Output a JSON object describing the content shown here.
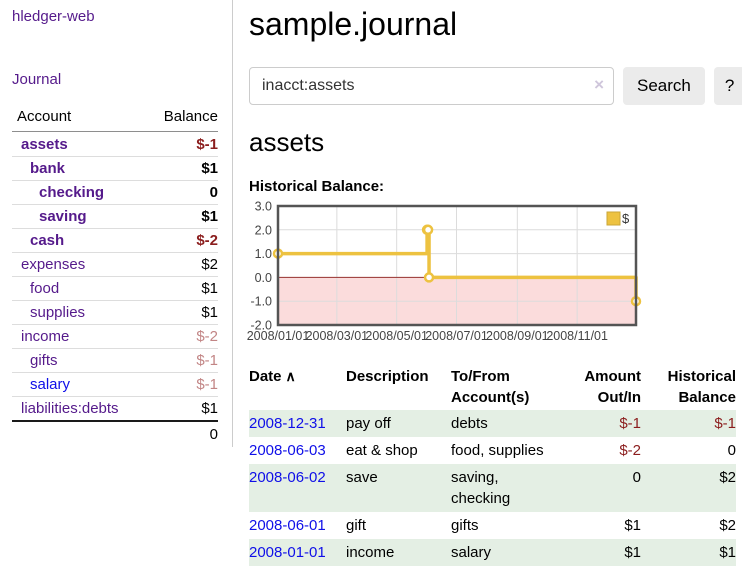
{
  "app": {
    "brand": "hledger-web",
    "nav": {
      "journal": "Journal"
    }
  },
  "sidebar": {
    "headers": {
      "account": "Account",
      "balance": "Balance"
    },
    "accounts": [
      {
        "name": "assets",
        "indent": 0,
        "balance": "$-1",
        "bold": true,
        "balance_style": "negative"
      },
      {
        "name": "bank",
        "indent": 1,
        "balance": "$1",
        "bold": true,
        "balance_style": "normal"
      },
      {
        "name": "checking",
        "indent": 2,
        "balance": "0",
        "bold": true,
        "balance_style": "normal"
      },
      {
        "name": "saving",
        "indent": 2,
        "balance": "$1",
        "bold": true,
        "balance_style": "normal"
      },
      {
        "name": "cash",
        "indent": 1,
        "balance": "$-2",
        "bold": true,
        "balance_style": "negative"
      },
      {
        "name": "expenses",
        "indent": 0,
        "balance": "$2",
        "bold": false,
        "balance_style": "normal"
      },
      {
        "name": "food",
        "indent": 1,
        "balance": "$1",
        "bold": false,
        "balance_style": "normal"
      },
      {
        "name": "supplies",
        "indent": 1,
        "balance": "$1",
        "bold": false,
        "balance_style": "normal"
      },
      {
        "name": "income",
        "indent": 0,
        "balance": "$-2",
        "bold": false,
        "balance_style": "dim-negative"
      },
      {
        "name": "gifts",
        "indent": 1,
        "balance": "$-1",
        "bold": false,
        "balance_style": "dim-negative"
      },
      {
        "name": "salary",
        "indent": 1,
        "balance": "$-1",
        "bold": false,
        "balance_style": "dim-negative",
        "link_style": "unvisited"
      },
      {
        "name": "liabilities:debts",
        "indent": 0,
        "balance": "$1",
        "bold": false,
        "balance_style": "normal"
      }
    ],
    "total": "0"
  },
  "header": {
    "title": "sample.journal"
  },
  "search": {
    "value": "inacct:assets",
    "clear_icon": "×",
    "button_label": "Search",
    "help_label": "?"
  },
  "account_page": {
    "title": "assets",
    "chart_heading": "Historical Balance:"
  },
  "chart_data": {
    "type": "line",
    "line_style": "step",
    "title": "Historical Balance",
    "series": [
      {
        "name": "$",
        "color": "#edc240",
        "points": [
          [
            "2008-01-01",
            1
          ],
          [
            "2008-06-01",
            2
          ],
          [
            "2008-06-02",
            2
          ],
          [
            "2008-06-03",
            0
          ],
          [
            "2008-12-31",
            -1
          ]
        ]
      }
    ],
    "x_range": [
      "2008-01-01",
      "2008-12-31"
    ],
    "ylim": [
      -2,
      3
    ],
    "y_tick_labels": [
      "3.0",
      "2.0",
      "1.0",
      "0.0",
      "-1.0",
      "-2.0"
    ],
    "x_tick_labels": [
      "2008/01/01",
      "2008/03/01",
      "2008/05/01",
      "2008/07/01",
      "2008/09/01",
      "2008/11/01"
    ],
    "grid": true,
    "legend": {
      "label": "$",
      "position": "top-right"
    },
    "negative_region_color": "#fbdcdc",
    "zero_line_color": "#96302e",
    "axis_color": "#545454",
    "gridline_color": "#dcdcdc",
    "tick_label_color": "#444444"
  },
  "register": {
    "headers": {
      "date": "Date",
      "sort_indicator": "∧",
      "description": "Description",
      "accounts": "To/From\nAccount(s)",
      "amount": "Amount\nOut/In",
      "balance": "Historical\nBalance"
    },
    "rows": [
      {
        "date": "2008-12-31",
        "description": "pay off",
        "accounts": "debts",
        "amount": "$-1",
        "amount_negative": true,
        "balance": "$-1",
        "balance_negative": true
      },
      {
        "date": "2008-06-03",
        "description": "eat & shop",
        "accounts": "food, supplies",
        "amount": "$-2",
        "amount_negative": true,
        "balance": "0",
        "balance_negative": false
      },
      {
        "date": "2008-06-02",
        "description": "save",
        "accounts": "saving,\nchecking",
        "amount": "0",
        "amount_negative": false,
        "balance": "$2",
        "balance_negative": false
      },
      {
        "date": "2008-06-01",
        "description": "gift",
        "accounts": "gifts",
        "amount": "$1",
        "amount_negative": false,
        "balance": "$2",
        "balance_negative": false
      },
      {
        "date": "2008-01-01",
        "description": "income",
        "accounts": "salary",
        "amount": "$1",
        "amount_negative": false,
        "balance": "$1",
        "balance_negative": false
      }
    ]
  },
  "colors": {
    "link_purple": "#551a8b",
    "link_blue": "#0f0fe8",
    "negative_red": "#8b1d1d",
    "dim_negative_red": "#c28585",
    "row_stripe_green": "#e4efe4",
    "chart_line_gold": "#edc240"
  }
}
